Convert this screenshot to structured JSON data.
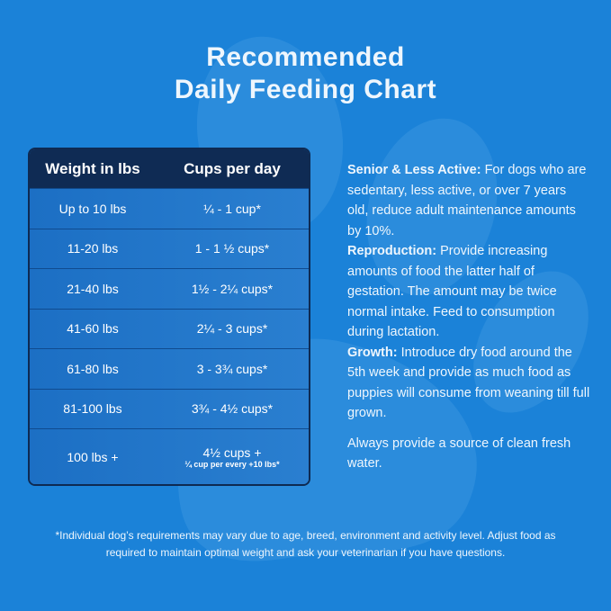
{
  "title_line1": "Recommended",
  "title_line2": "Daily Feeding Chart",
  "table": {
    "headers": [
      "Weight in lbs",
      "Cups per day"
    ],
    "rows": [
      {
        "weight": "Up to 10 lbs",
        "cups": "¼ - 1 cup*"
      },
      {
        "weight": "11-20 lbs",
        "cups": "1 - 1 ½  cups*"
      },
      {
        "weight": "21-40 lbs",
        "cups": "1½ - 2¼ cups*"
      },
      {
        "weight": "41-60 lbs",
        "cups": "2¼ - 3 cups*"
      },
      {
        "weight": "61-80 lbs",
        "cups": "3 - 3¾ cups*"
      },
      {
        "weight": "81-100 lbs",
        "cups": "3¾ - 4½ cups*"
      },
      {
        "weight": "100 lbs +",
        "cups": "4½ cups +",
        "note": "¼ cup per every +10 lbs*"
      }
    ]
  },
  "info": {
    "senior_label": "Senior & Less Active:",
    "senior_text": " For dogs who are sedentary, less active, or over 7 years old, reduce adult maintenance amounts by 10%.",
    "repro_label": "Reproduction:",
    "repro_text": " Provide increasing amounts of food the latter half of gestation. The amount may be twice normal intake. Feed to consumption during lactation.",
    "growth_label": "Growth:",
    "growth_text": " Introduce dry food around the 5th week and provide as much food as puppies will consume from weaning till full grown.",
    "water_text": "Always provide a source of clean fresh water."
  },
  "footer_line1": "*Individual dog’s requirements may vary due to age, breed, environment and activity level. Adjust food as",
  "footer_line2": "required to maintain optimal weight and ask your veterinarian if you have questions.",
  "colors": {
    "background": "#1b82d8",
    "header": "#0f2b54",
    "row": "#1f6fbf"
  },
  "icons": [
    "paw-print-icon"
  ]
}
